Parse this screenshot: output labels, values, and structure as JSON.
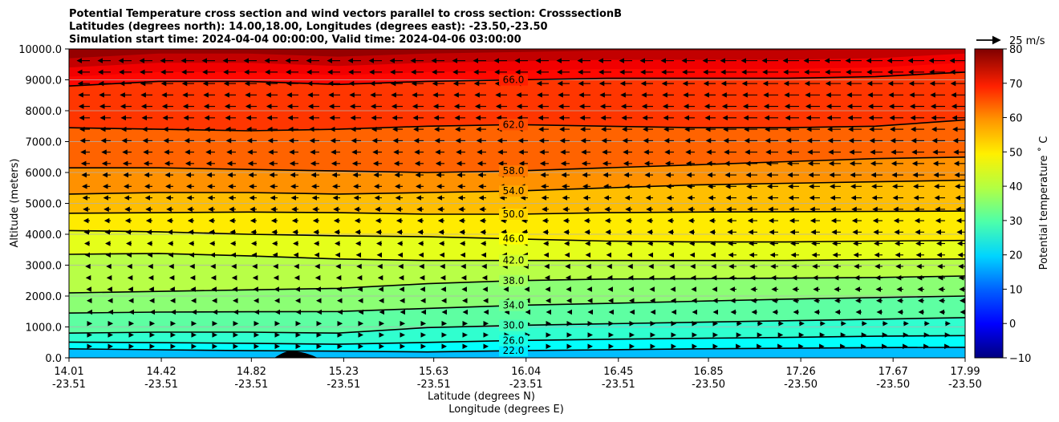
{
  "chart_data": {
    "type": "contourf",
    "title_lines": [
      "Potential Temperature cross section and wind vectors parallel to cross section: CrosssectionB",
      "Latitudes (degrees north): 14.00,18.00, Longitudes (degrees east): -23.50,-23.50",
      "Simulation start time: 2024-04-04 00:00:00, Valid time: 2024-04-06 03:00:00"
    ],
    "xlabel_lines": [
      "Latitude (degrees N)",
      "Longitude (degrees E)"
    ],
    "ylabel": "Altitude (meters)",
    "ylim": [
      0,
      10000
    ],
    "yticks": [
      "0.0",
      "1000.0",
      "2000.0",
      "3000.0",
      "4000.0",
      "5000.0",
      "6000.0",
      "7000.0",
      "8000.0",
      "9000.0",
      "10000.0"
    ],
    "ytick_values": [
      0,
      1000,
      2000,
      3000,
      4000,
      5000,
      6000,
      7000,
      8000,
      9000,
      10000
    ],
    "xlim": [
      14.01,
      17.99
    ],
    "xticks_lat": [
      "14.01",
      "14.42",
      "14.82",
      "15.23",
      "15.63",
      "16.04",
      "16.45",
      "16.85",
      "17.26",
      "17.67",
      "17.99"
    ],
    "xticks_lon": [
      "-23.51",
      "-23.51",
      "-23.51",
      "-23.51",
      "-23.51",
      "-23.51",
      "-23.51",
      "-23.50",
      "-23.50",
      "-23.50",
      "-23.50"
    ],
    "xtick_values": [
      14.01,
      14.42,
      14.82,
      15.23,
      15.63,
      16.04,
      16.45,
      16.85,
      17.26,
      17.67,
      17.99
    ],
    "colorbar": {
      "label": "Potential temperature ˚ C",
      "range": [
        -10,
        80
      ],
      "ticks": [
        "−10",
        "0",
        "10",
        "20",
        "30",
        "40",
        "50",
        "60",
        "70",
        "80"
      ],
      "tick_values": [
        -10,
        0,
        10,
        20,
        30,
        40,
        50,
        60,
        70,
        80
      ]
    },
    "quiver_key": "25 m/s",
    "grid": "horizontal",
    "contours": [
      {
        "level": 22.0,
        "label": "22.0",
        "heights": [
          290,
          260,
          230,
          215,
          190,
          230,
          260,
          290,
          310,
          330,
          340
        ]
      },
      {
        "level": 26.0,
        "label": "26.0",
        "heights": [
          510,
          490,
          470,
          440,
          500,
          560,
          600,
          630,
          660,
          700,
          720
        ]
      },
      {
        "level": 30.0,
        "label": "30.0",
        "heights": [
          800,
          830,
          830,
          800,
          980,
          1050,
          1100,
          1150,
          1200,
          1250,
          1300
        ]
      },
      {
        "level": 34.0,
        "label": "34.0",
        "heights": [
          1450,
          1480,
          1490,
          1500,
          1600,
          1700,
          1760,
          1830,
          1900,
          1950,
          2000
        ]
      },
      {
        "level": 38.0,
        "label": "38.0",
        "heights": [
          2100,
          2150,
          2200,
          2250,
          2400,
          2500,
          2550,
          2560,
          2580,
          2600,
          2650
        ]
      },
      {
        "level": 42.0,
        "label": "42.0",
        "heights": [
          3350,
          3380,
          3300,
          3200,
          3150,
          3150,
          3150,
          3150,
          3150,
          3180,
          3200
        ]
      },
      {
        "level": 46.0,
        "label": "46.0",
        "heights": [
          4120,
          4080,
          4000,
          3950,
          3920,
          3850,
          3780,
          3750,
          3750,
          3780,
          3800
        ]
      },
      {
        "level": 50.0,
        "label": "50.0",
        "heights": [
          4680,
          4700,
          4720,
          4700,
          4650,
          4650,
          4700,
          4720,
          4730,
          4740,
          4750
        ]
      },
      {
        "level": 54.0,
        "label": "54.0",
        "heights": [
          5300,
          5350,
          5350,
          5300,
          5350,
          5400,
          5500,
          5600,
          5650,
          5700,
          5750
        ]
      },
      {
        "level": 58.0,
        "label": "58.0",
        "heights": [
          6150,
          6150,
          6100,
          6050,
          6000,
          6050,
          6150,
          6250,
          6350,
          6450,
          6500
        ]
      },
      {
        "level": 62.0,
        "label": "62.0",
        "heights": [
          7450,
          7400,
          7350,
          7400,
          7500,
          7550,
          7500,
          7450,
          7450,
          7500,
          7700
        ]
      },
      {
        "level": 66.0,
        "label": "66.0",
        "heights": [
          8800,
          8950,
          8950,
          8850,
          8950,
          9000,
          9050,
          9050,
          9050,
          9100,
          9250
        ]
      }
    ]
  }
}
